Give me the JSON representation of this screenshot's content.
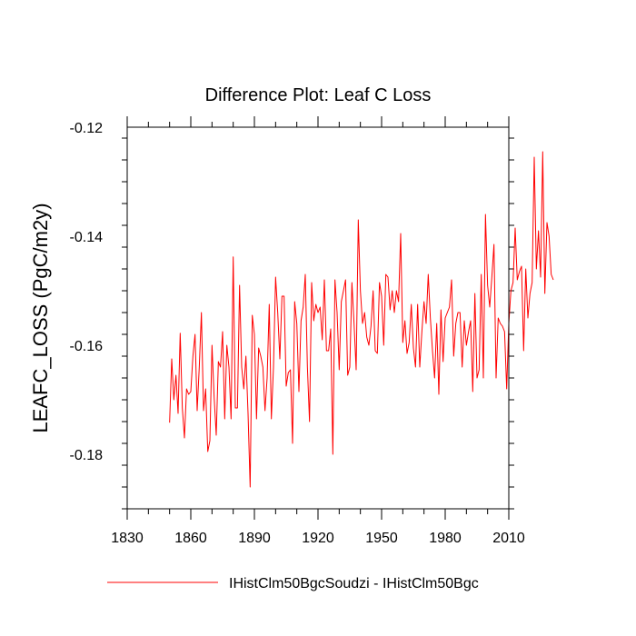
{
  "chart_data": {
    "type": "line",
    "title": "Difference Plot: Leaf C Loss",
    "xlabel": "",
    "ylabel": "LEAFC_LOSS  (PgC/m2y)",
    "xlim": [
      1830,
      2010
    ],
    "ylim": [
      -0.19,
      -0.12
    ],
    "xticks": [
      1830,
      1860,
      1890,
      1920,
      1950,
      1980,
      2010
    ],
    "xtick_labels": [
      "1830",
      "1860",
      "1890",
      "1920",
      "1950",
      "1980",
      "2010"
    ],
    "yticks": [
      -0.18,
      -0.16,
      -0.14,
      -0.12
    ],
    "ytick_labels": [
      "-0.18",
      "-0.16",
      "-0.14",
      "-0.12"
    ],
    "grid": false,
    "legend_position": "bottom",
    "series": [
      {
        "name": "IHistClm50BgcSoudzi - IHistClm50Bgc",
        "color": "#ff0000",
        "x_start": 1850,
        "x_step": 1,
        "values": [
          -0.1742,
          -0.1625,
          -0.17,
          -0.1655,
          -0.1725,
          -0.1578,
          -0.1715,
          -0.177,
          -0.168,
          -0.169,
          -0.1685,
          -0.162,
          -0.158,
          -0.172,
          -0.164,
          -0.154,
          -0.172,
          -0.168,
          -0.1795,
          -0.1775,
          -0.16,
          -0.1695,
          -0.1765,
          -0.163,
          -0.164,
          -0.1575,
          -0.1735,
          -0.16,
          -0.164,
          -0.1735,
          -0.1438,
          -0.1715,
          -0.1715,
          -0.149,
          -0.164,
          -0.168,
          -0.162,
          -0.1725,
          -0.186,
          -0.1545,
          -0.158,
          -0.1735,
          -0.1605,
          -0.162,
          -0.164,
          -0.172,
          -0.166,
          -0.1525,
          -0.1735,
          -0.164,
          -0.1475,
          -0.154,
          -0.1625,
          -0.151,
          -0.151,
          -0.1675,
          -0.165,
          -0.1645,
          -0.178,
          -0.152,
          -0.156,
          -0.1685,
          -0.1555,
          -0.153,
          -0.147,
          -0.164,
          -0.174,
          -0.1485,
          -0.1555,
          -0.1525,
          -0.154,
          -0.153,
          -0.159,
          -0.148,
          -0.161,
          -0.161,
          -0.157,
          -0.18,
          -0.148,
          -0.154,
          -0.1645,
          -0.152,
          -0.15,
          -0.148,
          -0.1655,
          -0.164,
          -0.1485,
          -0.156,
          -0.1645,
          -0.137,
          -0.15,
          -0.156,
          -0.154,
          -0.1585,
          -0.16,
          -0.1565,
          -0.15,
          -0.161,
          -0.1615,
          -0.1485,
          -0.151,
          -0.16,
          -0.147,
          -0.1475,
          -0.1535,
          -0.15,
          -0.154,
          -0.15,
          -0.152,
          -0.1395,
          -0.1595,
          -0.1555,
          -0.1615,
          -0.1595,
          -0.1525,
          -0.1605,
          -0.164,
          -0.1525,
          -0.164,
          -0.1575,
          -0.152,
          -0.156,
          -0.147,
          -0.155,
          -0.161,
          -0.166,
          -0.156,
          -0.169,
          -0.1535,
          -0.163,
          -0.155,
          -0.154,
          -0.153,
          -0.148,
          -0.162,
          -0.156,
          -0.154,
          -0.154,
          -0.164,
          -0.1555,
          -0.16,
          -0.1575,
          -0.1555,
          -0.1685,
          -0.1505,
          -0.166,
          -0.1645,
          -0.147,
          -0.166,
          -0.136,
          -0.149,
          -0.153,
          -0.1475,
          -0.1415,
          -0.166,
          -0.155,
          -0.156,
          -0.1565,
          -0.1575,
          -0.168,
          -0.156,
          -0.15,
          -0.1485,
          -0.1385,
          -0.148,
          -0.1465,
          -0.1455,
          -0.161,
          -0.146,
          -0.155,
          -0.1505,
          -0.1485,
          -0.1255,
          -0.146,
          -0.139,
          -0.1475,
          -0.1245,
          -0.1505,
          -0.1375,
          -0.14,
          -0.147,
          -0.148
        ]
      }
    ]
  }
}
